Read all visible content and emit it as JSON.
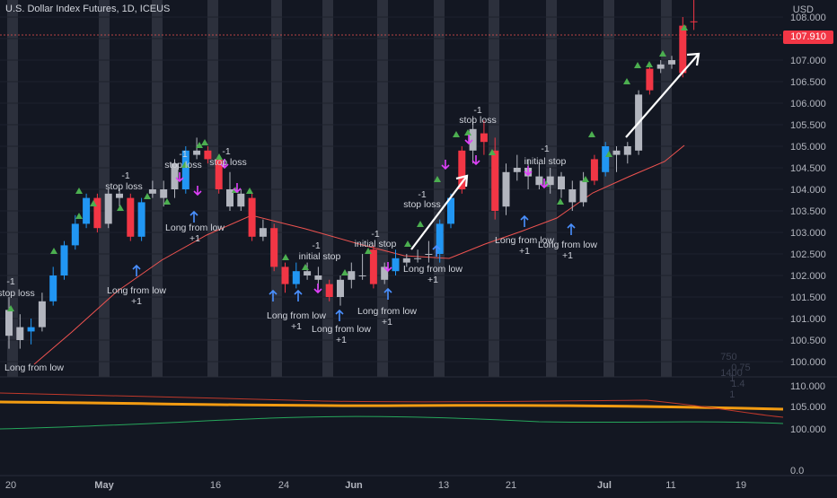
{
  "header": {
    "title": "U.S. Dollar Index Futures, 1D, ICEUS",
    "currency": "USD"
  },
  "last_price": "107.910",
  "legend_rows": [
    {
      "label": "750",
      "v1": "0.75",
      "v2": "1"
    },
    {
      "label": "1400",
      "v1": "1.4",
      "v2": "1"
    }
  ],
  "colors": {
    "background": "#131722",
    "up_blue": "#2196f3",
    "down_red": "#f23645",
    "neutral_gray": "#b2b5be",
    "ma_line": "#ef5350",
    "band": "#363a45",
    "osc_orange": "#f39c12",
    "osc_green": "#26a65b",
    "marker_green": "#4caf50",
    "marker_magenta": "#e040fb"
  },
  "chart_data": {
    "type": "candlestick",
    "y_axis_labels": [
      "108.000",
      "107.500",
      "107.000",
      "106.500",
      "106.000",
      "105.500",
      "105.000",
      "104.500",
      "104.000",
      "103.500",
      "103.000",
      "102.500",
      "102.000",
      "101.500",
      "101.000",
      "100.500",
      "100.000"
    ],
    "ylim": [
      99.8,
      108.7
    ],
    "x_axis_labels": [
      "20",
      "May",
      "16",
      "24",
      "Jun",
      "13",
      "21",
      "Jul",
      "11",
      "19"
    ],
    "candles": [
      {
        "o": 101.2,
        "h": 101.5,
        "l": 100.3,
        "c": 100.6,
        "t": "g"
      },
      {
        "o": 100.5,
        "h": 101.1,
        "l": 100.3,
        "c": 100.8,
        "t": "g"
      },
      {
        "o": 100.7,
        "h": 101.0,
        "l": 100.4,
        "c": 100.8,
        "t": "b"
      },
      {
        "o": 100.8,
        "h": 101.6,
        "l": 100.7,
        "c": 101.4,
        "t": "g"
      },
      {
        "o": 101.4,
        "h": 102.2,
        "l": 101.3,
        "c": 102.0,
        "t": "b"
      },
      {
        "o": 102.0,
        "h": 102.8,
        "l": 101.9,
        "c": 102.7,
        "t": "b"
      },
      {
        "o": 102.7,
        "h": 103.4,
        "l": 102.6,
        "c": 103.2,
        "t": "b"
      },
      {
        "o": 103.2,
        "h": 103.9,
        "l": 103.1,
        "c": 103.8,
        "t": "b"
      },
      {
        "o": 103.8,
        "h": 103.9,
        "l": 103.0,
        "c": 103.1,
        "t": "r"
      },
      {
        "o": 103.2,
        "h": 104.0,
        "l": 103.1,
        "c": 103.9,
        "t": "g"
      },
      {
        "o": 103.9,
        "h": 104.0,
        "l": 103.6,
        "c": 103.8,
        "t": "g"
      },
      {
        "o": 103.8,
        "h": 103.9,
        "l": 102.8,
        "c": 102.9,
        "t": "r"
      },
      {
        "o": 102.9,
        "h": 103.8,
        "l": 102.8,
        "c": 103.7,
        "t": "b"
      },
      {
        "o": 103.9,
        "h": 104.2,
        "l": 103.8,
        "c": 104.0,
        "t": "g"
      },
      {
        "o": 103.8,
        "h": 104.2,
        "l": 103.6,
        "c": 104.0,
        "t": "g"
      },
      {
        "o": 104.0,
        "h": 104.7,
        "l": 103.8,
        "c": 104.6,
        "t": "g"
      },
      {
        "o": 104.0,
        "h": 105.0,
        "l": 103.9,
        "c": 104.9,
        "t": "b"
      },
      {
        "o": 104.8,
        "h": 105.2,
        "l": 104.7,
        "c": 104.9,
        "t": "g"
      },
      {
        "o": 104.9,
        "h": 105.0,
        "l": 104.6,
        "c": 104.7,
        "t": "r"
      },
      {
        "o": 104.7,
        "h": 104.8,
        "l": 103.9,
        "c": 104.0,
        "t": "r"
      },
      {
        "o": 104.0,
        "h": 104.4,
        "l": 103.5,
        "c": 103.6,
        "t": "g"
      },
      {
        "o": 103.6,
        "h": 104.0,
        "l": 103.5,
        "c": 103.9,
        "t": "g"
      },
      {
        "o": 103.8,
        "h": 103.9,
        "l": 102.8,
        "c": 102.9,
        "t": "r"
      },
      {
        "o": 102.9,
        "h": 103.3,
        "l": 102.8,
        "c": 103.1,
        "t": "g"
      },
      {
        "o": 103.1,
        "h": 103.2,
        "l": 102.1,
        "c": 102.2,
        "t": "r"
      },
      {
        "o": 102.2,
        "h": 102.3,
        "l": 101.6,
        "c": 101.8,
        "t": "r"
      },
      {
        "o": 101.8,
        "h": 102.3,
        "l": 101.7,
        "c": 102.1,
        "t": "b"
      },
      {
        "o": 102.1,
        "h": 102.3,
        "l": 101.9,
        "c": 102.0,
        "t": "g"
      },
      {
        "o": 102.0,
        "h": 102.2,
        "l": 101.7,
        "c": 101.9,
        "t": "g"
      },
      {
        "o": 101.8,
        "h": 101.9,
        "l": 101.4,
        "c": 101.5,
        "t": "r"
      },
      {
        "o": 101.5,
        "h": 102.0,
        "l": 101.3,
        "c": 101.9,
        "t": "g"
      },
      {
        "o": 101.9,
        "h": 102.3,
        "l": 101.7,
        "c": 102.1,
        "t": "g"
      },
      {
        "o": 102.0,
        "h": 102.5,
        "l": 101.9,
        "c": 102.0,
        "t": "g"
      },
      {
        "o": 102.6,
        "h": 102.7,
        "l": 101.7,
        "c": 101.8,
        "t": "r"
      },
      {
        "o": 101.9,
        "h": 102.3,
        "l": 101.8,
        "c": 102.2,
        "t": "g"
      },
      {
        "o": 102.4,
        "h": 102.6,
        "l": 102.0,
        "c": 102.1,
        "t": "b"
      },
      {
        "o": 102.3,
        "h": 102.5,
        "l": 102.2,
        "c": 102.4,
        "t": "g"
      },
      {
        "o": 102.4,
        "h": 102.6,
        "l": 102.3,
        "c": 102.4,
        "t": "g"
      },
      {
        "o": 102.5,
        "h": 102.8,
        "l": 102.3,
        "c": 102.5,
        "t": "g"
      },
      {
        "o": 102.5,
        "h": 103.3,
        "l": 102.3,
        "c": 103.2,
        "t": "b"
      },
      {
        "o": 103.2,
        "h": 103.9,
        "l": 103.1,
        "c": 103.8,
        "t": "b"
      },
      {
        "o": 104.0,
        "h": 105.0,
        "l": 103.9,
        "c": 104.9,
        "t": "r"
      },
      {
        "o": 104.9,
        "h": 105.7,
        "l": 104.6,
        "c": 105.4,
        "t": "g"
      },
      {
        "o": 105.3,
        "h": 105.6,
        "l": 104.8,
        "c": 105.1,
        "t": "r"
      },
      {
        "o": 104.9,
        "h": 105.2,
        "l": 103.3,
        "c": 103.5,
        "t": "r"
      },
      {
        "o": 103.6,
        "h": 104.6,
        "l": 103.4,
        "c": 104.4,
        "t": "g"
      },
      {
        "o": 104.4,
        "h": 104.8,
        "l": 104.2,
        "c": 104.5,
        "t": "g"
      },
      {
        "o": 104.5,
        "h": 104.7,
        "l": 104.0,
        "c": 104.3,
        "t": "g"
      },
      {
        "o": 104.3,
        "h": 104.6,
        "l": 104.0,
        "c": 104.1,
        "t": "g"
      },
      {
        "o": 104.1,
        "h": 104.5,
        "l": 103.9,
        "c": 104.3,
        "t": "g"
      },
      {
        "o": 104.3,
        "h": 104.4,
        "l": 103.8,
        "c": 104.0,
        "t": "g"
      },
      {
        "o": 104.0,
        "h": 104.2,
        "l": 103.5,
        "c": 103.7,
        "t": "g"
      },
      {
        "o": 103.7,
        "h": 104.4,
        "l": 103.6,
        "c": 104.2,
        "t": "g"
      },
      {
        "o": 104.2,
        "h": 104.8,
        "l": 104.1,
        "c": 104.7,
        "t": "r"
      },
      {
        "o": 104.4,
        "h": 105.1,
        "l": 104.3,
        "c": 105.0,
        "t": "b"
      },
      {
        "o": 104.9,
        "h": 105.0,
        "l": 104.4,
        "c": 104.8,
        "t": "g"
      },
      {
        "o": 104.8,
        "h": 105.1,
        "l": 104.6,
        "c": 105.0,
        "t": "g"
      },
      {
        "o": 104.9,
        "h": 106.3,
        "l": 104.8,
        "c": 106.2,
        "t": "g"
      },
      {
        "o": 106.3,
        "h": 106.9,
        "l": 106.2,
        "c": 106.8,
        "t": "r"
      },
      {
        "o": 106.8,
        "h": 107.0,
        "l": 106.7,
        "c": 106.9,
        "t": "g"
      },
      {
        "o": 106.9,
        "h": 107.1,
        "l": 106.8,
        "c": 107.0,
        "t": "g"
      },
      {
        "o": 106.7,
        "h": 108.0,
        "l": 106.6,
        "c": 107.8,
        "t": "r"
      },
      {
        "o": 107.9,
        "h": 108.6,
        "l": 107.7,
        "c": 107.9,
        "t": "r"
      }
    ],
    "annotations": [
      {
        "text": "-1",
        "x": 12,
        "y": 317
      },
      {
        "text": "stop loss",
        "x": 18,
        "y": 330
      },
      {
        "text": "Long from low",
        "x": 38,
        "y": 413
      },
      {
        "text": "-1",
        "x": 140,
        "y": 199
      },
      {
        "text": "stop loss",
        "x": 138,
        "y": 211
      },
      {
        "text": "Long from low",
        "x": 152,
        "y": 327
      },
      {
        "text": "+1",
        "x": 152,
        "y": 339
      },
      {
        "text": "-1",
        "x": 204,
        "y": 175
      },
      {
        "text": "stop loss",
        "x": 204,
        "y": 187
      },
      {
        "text": "-1",
        "x": 252,
        "y": 172
      },
      {
        "text": "stop loss",
        "x": 254,
        "y": 184
      },
      {
        "text": "Long from low",
        "x": 217,
        "y": 257
      },
      {
        "text": "+1",
        "x": 217,
        "y": 269
      },
      {
        "text": "-1",
        "x": 352,
        "y": 277
      },
      {
        "text": "initial stop",
        "x": 356,
        "y": 289
      },
      {
        "text": "Long from low",
        "x": 330,
        "y": 355
      },
      {
        "text": "+1",
        "x": 330,
        "y": 367
      },
      {
        "text": "Long from low",
        "x": 380,
        "y": 370
      },
      {
        "text": "+1",
        "x": 380,
        "y": 382
      },
      {
        "text": "-1",
        "x": 418,
        "y": 264
      },
      {
        "text": "initial stop",
        "x": 418,
        "y": 275
      },
      {
        "text": "Long from low",
        "x": 431,
        "y": 350
      },
      {
        "text": "+1",
        "x": 431,
        "y": 362
      },
      {
        "text": "-1",
        "x": 470,
        "y": 220
      },
      {
        "text": "stop loss",
        "x": 470,
        "y": 231
      },
      {
        "text": "Long from low",
        "x": 482,
        "y": 303
      },
      {
        "text": "+1",
        "x": 482,
        "y": 315
      },
      {
        "text": "-1",
        "x": 532,
        "y": 126
      },
      {
        "text": "stop loss",
        "x": 532,
        "y": 137
      },
      {
        "text": "-1",
        "x": 607,
        "y": 169
      },
      {
        "text": "initial stop",
        "x": 607,
        "y": 183
      },
      {
        "text": "Long from low",
        "x": 584,
        "y": 271
      },
      {
        "text": "+1",
        "x": 584,
        "y": 283
      },
      {
        "text": "Long from low",
        "x": 632,
        "y": 276
      },
      {
        "text": "+1",
        "x": 632,
        "y": 288
      }
    ],
    "oscillator_y_labels": [
      "110.000",
      "105.000",
      "100.000",
      "0.0"
    ]
  }
}
